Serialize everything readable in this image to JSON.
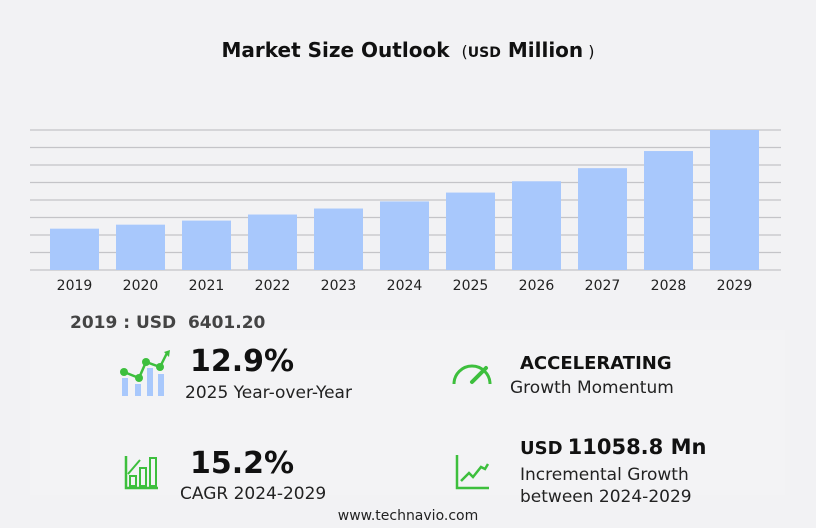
{
  "header": {
    "title": "Market Size Outlook",
    "unit_prefix": "USD",
    "unit": "Million"
  },
  "chart_data": {
    "type": "bar",
    "title": "Market Size Outlook (USD Million)",
    "categories": [
      "2019",
      "2020",
      "2021",
      "2022",
      "2023",
      "2024",
      "2025",
      "2026",
      "2027",
      "2028",
      "2029"
    ],
    "values": [
      6401.2,
      7020,
      7650,
      8590,
      9520,
      10620,
      11990,
      13740,
      15770,
      18420,
      21679
    ],
    "ylim": [
      0,
      21679
    ],
    "grid": true,
    "bar_color": "#a8c8fc"
  },
  "base_value": "2019 : USD  6401.20",
  "stats": {
    "yoy": {
      "value": "12.9%",
      "label": "2025 Year-over-Year",
      "icon": "bar-line-chart-icon"
    },
    "momentum": {
      "value": "ACCELERATING",
      "label": "Growth Momentum",
      "icon": "speedometer-icon"
    },
    "cagr": {
      "value": "15.2%",
      "label": "CAGR 2024-2029",
      "icon": "bar-growth-icon"
    },
    "incremental": {
      "prefix": "USD",
      "value": "11058.8 Mn",
      "label1": "Incremental Growth",
      "label2": "between 2024-2029",
      "icon": "trend-line-icon"
    }
  },
  "colors": {
    "accent": "#3dbf3d",
    "bar": "#a8c8fc"
  },
  "footer": "www.technavio.com"
}
